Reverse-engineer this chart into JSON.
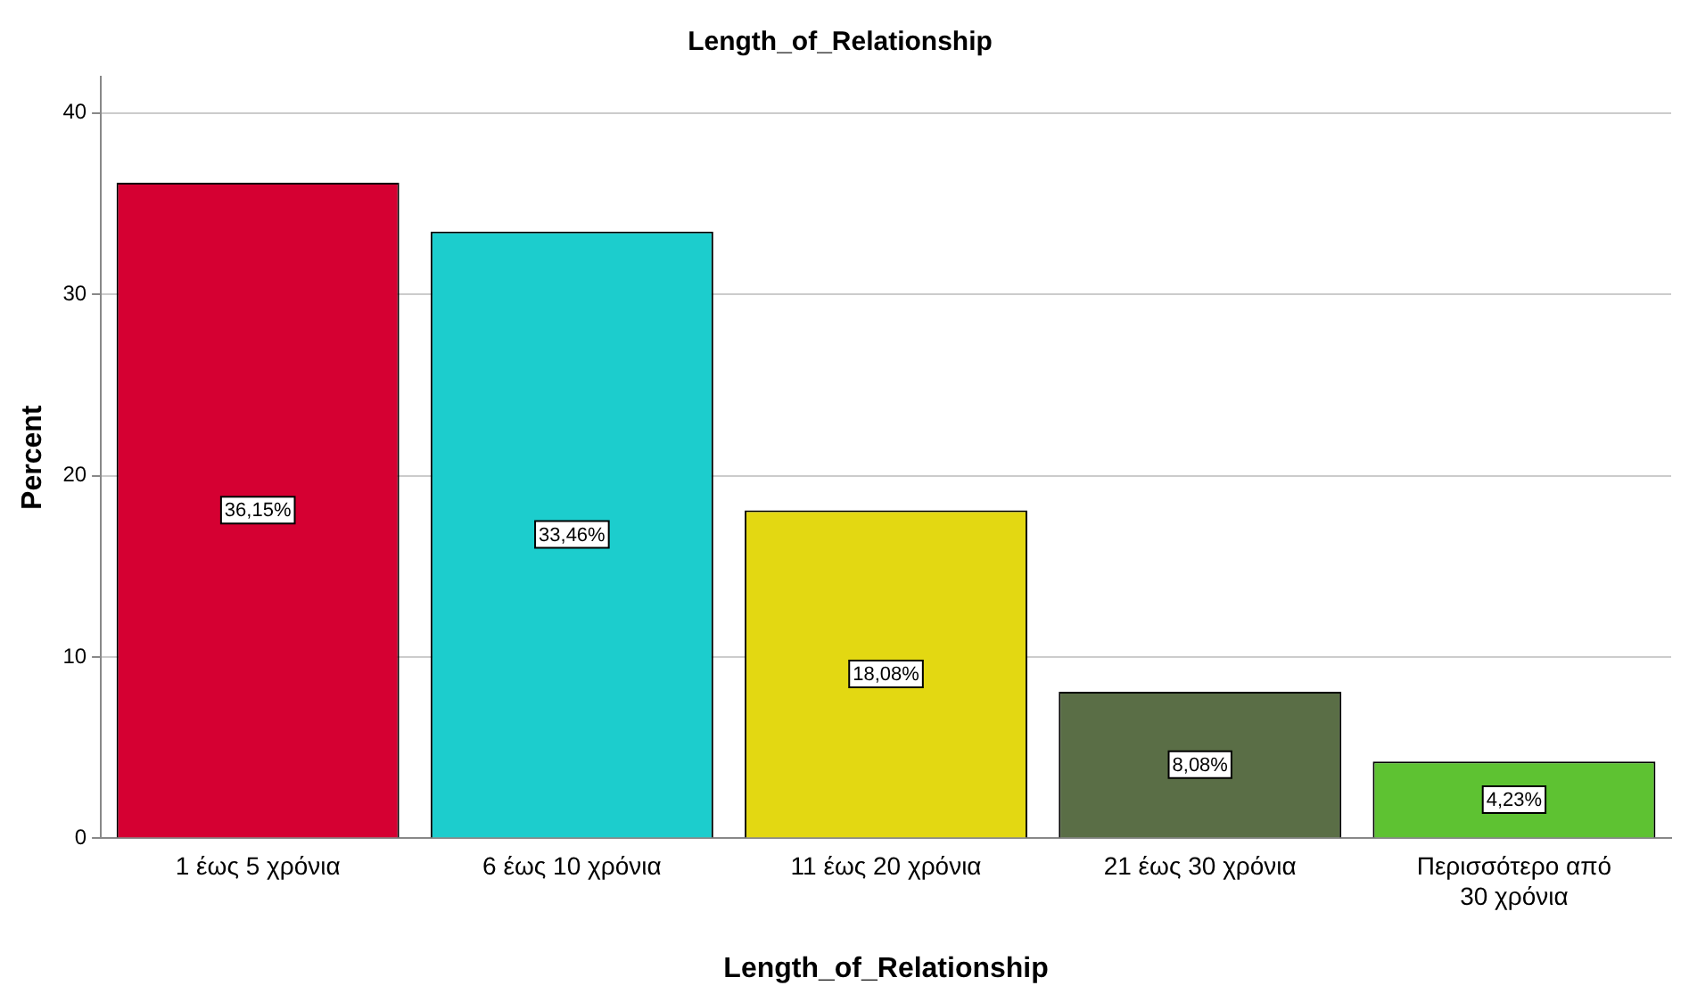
{
  "chart_data": {
    "type": "bar",
    "title": "Length_of_Relationship",
    "xlabel": "Length_of_Relationship",
    "ylabel": "Percent",
    "categories": [
      "1 έως 5 χρόνια",
      "6 έως 10 χρόνια",
      "11 έως 20 χρόνια",
      "21 έως 30 χρόνια",
      "Περισσότερο από 30 χρόνια"
    ],
    "values": [
      36.15,
      33.46,
      18.08,
      8.08,
      4.23
    ],
    "value_labels": [
      "36,15%",
      "33,46%",
      "18,08%",
      "8,08%",
      "4,23%"
    ],
    "colors": [
      "#d50032",
      "#1ccdcd",
      "#e3d812",
      "#5a6e46",
      "#5ec232"
    ],
    "ylim": [
      0,
      42
    ],
    "yticks": [
      0,
      10,
      20,
      30,
      40
    ],
    "grid": "y",
    "legend": false
  }
}
